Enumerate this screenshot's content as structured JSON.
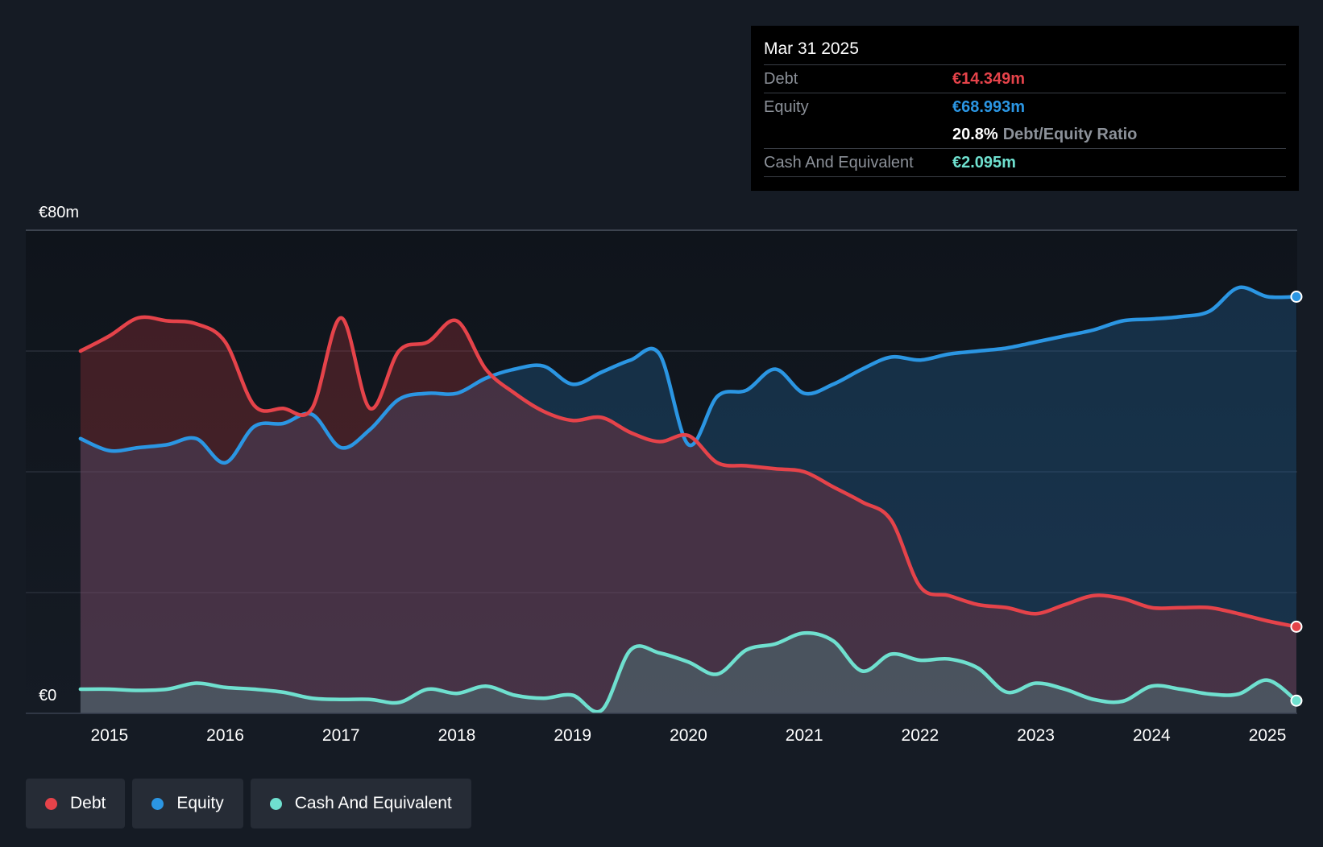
{
  "tooltip": {
    "date": "Mar 31 2025",
    "debt_label": "Debt",
    "debt_value": "€14.349m",
    "equity_label": "Equity",
    "equity_value": "€68.993m",
    "ratio_value": "20.8%",
    "ratio_label": "Debt/Equity Ratio",
    "cash_label": "Cash And Equivalent",
    "cash_value": "€2.095m"
  },
  "legend": [
    {
      "label": "Debt",
      "color": "#e5434a"
    },
    {
      "label": "Equity",
      "color": "#2b96e3"
    },
    {
      "label": "Cash And Equivalent",
      "color": "#6fe0cf"
    }
  ],
  "chart_data": {
    "type": "area",
    "y_tick_labels": [
      "€0",
      "€80m"
    ],
    "ylim": [
      0,
      80
    ],
    "y_gridlines": [
      20,
      40,
      60,
      80
    ],
    "xlim": [
      2014.73,
      2025.25
    ],
    "x_ticks": [
      2015,
      2016,
      2017,
      2018,
      2019,
      2020,
      2021,
      2022,
      2023,
      2024,
      2025
    ],
    "x_tick_labels": [
      "2015",
      "2016",
      "2017",
      "2018",
      "2019",
      "2020",
      "2021",
      "2022",
      "2023",
      "2024",
      "2025"
    ],
    "legend_position": "bottom-left",
    "grid": true,
    "colors": {
      "debt": "#e5434a",
      "equity": "#2b96e3",
      "cash": "#6fe0cf"
    },
    "series": [
      {
        "name": "Debt",
        "key": "debt",
        "points": [
          [
            2014.75,
            60
          ],
          [
            2015,
            62.5
          ],
          [
            2015.25,
            65.5
          ],
          [
            2015.5,
            65
          ],
          [
            2015.75,
            64.5
          ],
          [
            2016,
            61.5
          ],
          [
            2016.25,
            51
          ],
          [
            2016.5,
            50.5
          ],
          [
            2016.75,
            50.5
          ],
          [
            2017,
            65.5
          ],
          [
            2017.25,
            50.5
          ],
          [
            2017.5,
            60
          ],
          [
            2017.75,
            61.5
          ],
          [
            2018,
            65
          ],
          [
            2018.25,
            57
          ],
          [
            2018.5,
            53
          ],
          [
            2018.75,
            50
          ],
          [
            2019,
            48.5
          ],
          [
            2019.25,
            49
          ],
          [
            2019.5,
            46.5
          ],
          [
            2019.75,
            45
          ],
          [
            2020,
            46
          ],
          [
            2020.25,
            41.5
          ],
          [
            2020.5,
            41
          ],
          [
            2020.75,
            40.5
          ],
          [
            2021,
            40
          ],
          [
            2021.25,
            37.5
          ],
          [
            2021.5,
            35
          ],
          [
            2021.75,
            32
          ],
          [
            2022,
            21
          ],
          [
            2022.25,
            19.5
          ],
          [
            2022.5,
            18
          ],
          [
            2022.75,
            17.5
          ],
          [
            2023,
            16.5
          ],
          [
            2023.25,
            18
          ],
          [
            2023.5,
            19.5
          ],
          [
            2023.75,
            19
          ],
          [
            2024,
            17.5
          ],
          [
            2024.25,
            17.5
          ],
          [
            2024.5,
            17.5
          ],
          [
            2024.75,
            16.5
          ],
          [
            2025,
            15.3
          ],
          [
            2025.25,
            14.35
          ]
        ]
      },
      {
        "name": "Equity",
        "key": "equity",
        "points": [
          [
            2014.75,
            45.5
          ],
          [
            2015,
            43.5
          ],
          [
            2015.25,
            44
          ],
          [
            2015.5,
            44.5
          ],
          [
            2015.75,
            45.5
          ],
          [
            2016,
            41.5
          ],
          [
            2016.25,
            47.5
          ],
          [
            2016.5,
            48
          ],
          [
            2016.75,
            49.5
          ],
          [
            2017,
            44
          ],
          [
            2017.25,
            47
          ],
          [
            2017.5,
            52
          ],
          [
            2017.75,
            53
          ],
          [
            2018,
            53
          ],
          [
            2018.25,
            55.5
          ],
          [
            2018.5,
            57
          ],
          [
            2018.75,
            57.5
          ],
          [
            2019,
            54.5
          ],
          [
            2019.25,
            56.5
          ],
          [
            2019.5,
            58.5
          ],
          [
            2019.75,
            59.5
          ],
          [
            2020,
            44.5
          ],
          [
            2020.25,
            52.5
          ],
          [
            2020.5,
            53.5
          ],
          [
            2020.75,
            57
          ],
          [
            2021,
            53
          ],
          [
            2021.25,
            54.5
          ],
          [
            2021.5,
            57
          ],
          [
            2021.75,
            59
          ],
          [
            2022,
            58.5
          ],
          [
            2022.25,
            59.5
          ],
          [
            2022.5,
            60
          ],
          [
            2022.75,
            60.5
          ],
          [
            2023,
            61.5
          ],
          [
            2023.25,
            62.5
          ],
          [
            2023.5,
            63.5
          ],
          [
            2023.75,
            65
          ],
          [
            2024,
            65.3
          ],
          [
            2024.25,
            65.7
          ],
          [
            2024.5,
            66.6
          ],
          [
            2024.75,
            70.5
          ],
          [
            2025,
            69
          ],
          [
            2025.25,
            69
          ]
        ]
      },
      {
        "name": "Cash And Equivalent",
        "key": "cash",
        "points": [
          [
            2014.75,
            4
          ],
          [
            2015,
            4
          ],
          [
            2015.25,
            3.8
          ],
          [
            2015.5,
            4
          ],
          [
            2015.75,
            5
          ],
          [
            2016,
            4.3
          ],
          [
            2016.25,
            4
          ],
          [
            2016.5,
            3.5
          ],
          [
            2016.75,
            2.5
          ],
          [
            2017,
            2.3
          ],
          [
            2017.25,
            2.3
          ],
          [
            2017.5,
            1.8
          ],
          [
            2017.75,
            4
          ],
          [
            2018,
            3.3
          ],
          [
            2018.25,
            4.5
          ],
          [
            2018.5,
            3
          ],
          [
            2018.75,
            2.5
          ],
          [
            2019,
            3
          ],
          [
            2019.25,
            0.5
          ],
          [
            2019.5,
            10.5
          ],
          [
            2019.75,
            10
          ],
          [
            2020,
            8.5
          ],
          [
            2020.25,
            6.5
          ],
          [
            2020.5,
            10.5
          ],
          [
            2020.75,
            11.5
          ],
          [
            2021,
            13.3
          ],
          [
            2021.25,
            12
          ],
          [
            2021.5,
            7
          ],
          [
            2021.75,
            9.8
          ],
          [
            2022,
            8.8
          ],
          [
            2022.25,
            9
          ],
          [
            2022.5,
            7.5
          ],
          [
            2022.75,
            3.5
          ],
          [
            2023,
            5
          ],
          [
            2023.25,
            4
          ],
          [
            2023.5,
            2.3
          ],
          [
            2023.75,
            2
          ],
          [
            2024,
            4.5
          ],
          [
            2024.25,
            4
          ],
          [
            2024.5,
            3.2
          ],
          [
            2024.75,
            3.2
          ],
          [
            2025,
            5.5
          ],
          [
            2025.25,
            2.1
          ]
        ]
      }
    ]
  }
}
